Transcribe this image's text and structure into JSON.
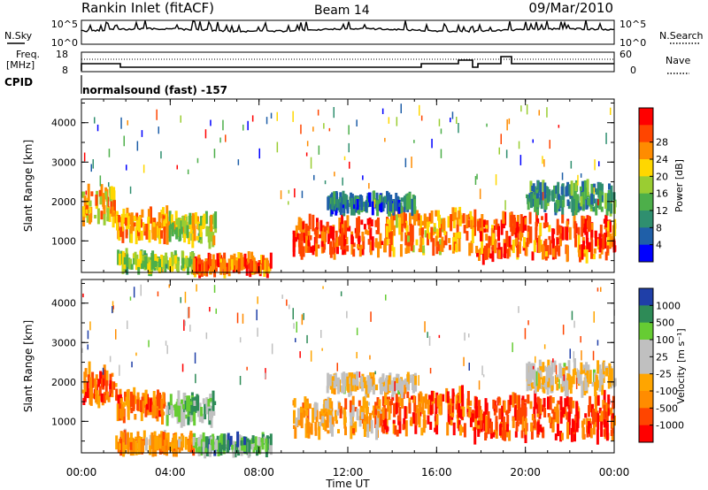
{
  "header": {
    "site": "Rankin Inlet (fitACF)",
    "beam": "Beam 14",
    "date": "09/Mar/2010"
  },
  "status": {
    "nsky_label": "N.Sky",
    "nsky_ticks": [
      "10^5",
      "10^0"
    ],
    "nsearch_label": "N.Search",
    "nsearch_ticks": [
      "10^5",
      "10^0"
    ],
    "freq_label": "Freq.",
    "freq_unit": "[MHz]",
    "freq_ticks": [
      "18",
      "8"
    ],
    "nave_label": "Nave",
    "nave_ticks": [
      "60",
      "0"
    ],
    "cpid_label": "CPID",
    "cpid_value": "normalsound (fast) -157"
  },
  "colors": {
    "power": [
      "#0000ff",
      "#1f5fa8",
      "#2f8f6f",
      "#4daf4a",
      "#9acd32",
      "#ffd700",
      "#ff8c00",
      "#ff4500",
      "#ff0000"
    ],
    "velocity": [
      "#ff0000",
      "#ff4500",
      "#ff8c00",
      "#ffa500",
      "#c0c0c0",
      "#c0c0c0",
      "#66cc33",
      "#2e8b57",
      "#1f3fa8"
    ]
  },
  "chart_data": [
    {
      "type": "heatmap",
      "name": "power",
      "ylabel": "Slant Range [km]",
      "ylim": [
        200,
        4600
      ],
      "yticks": [
        "1000",
        "2000",
        "3000",
        "4000"
      ],
      "xlim_hours": [
        0,
        24
      ],
      "colorbar": {
        "label": "Power [dB]",
        "ticks": [
          "4",
          "8",
          "12",
          "16",
          "20",
          "24",
          "28"
        ]
      },
      "echo_bands": [
        {
          "t": [
            0.0,
            1.5
          ],
          "r": [
            1500,
            2300
          ],
          "level": 0.65
        },
        {
          "t": [
            1.5,
            3.8
          ],
          "r": [
            1100,
            1700
          ],
          "level": 0.7
        },
        {
          "t": [
            3.8,
            6.0
          ],
          "r": [
            1000,
            1600
          ],
          "level": 0.55
        },
        {
          "t": [
            1.5,
            5.0
          ],
          "r": [
            300,
            600
          ],
          "level": 0.5
        },
        {
          "t": [
            5.0,
            8.5
          ],
          "r": [
            250,
            550
          ],
          "level": 0.8
        },
        {
          "t": [
            9.5,
            13.5
          ],
          "r": [
            700,
            1500
          ],
          "level": 0.85
        },
        {
          "t": [
            13.5,
            17.5
          ],
          "r": [
            700,
            1700
          ],
          "level": 0.7
        },
        {
          "t": [
            17.5,
            24.0
          ],
          "r": [
            600,
            1600
          ],
          "level": 0.8
        },
        {
          "t": [
            11.0,
            15.0
          ],
          "r": [
            1800,
            2100
          ],
          "level": 0.25
        },
        {
          "t": [
            20.0,
            24.0
          ],
          "r": [
            1800,
            2400
          ],
          "level": 0.3
        }
      ]
    },
    {
      "type": "heatmap",
      "name": "velocity",
      "ylabel": "Slant Range [km]",
      "ylim": [
        200,
        4600
      ],
      "yticks": [
        "1000",
        "2000",
        "3000",
        "4000"
      ],
      "xlim_hours": [
        0,
        24
      ],
      "colorbar": {
        "label": "Velocity [m s⁻¹]",
        "ticks": [
          "1000",
          "500",
          "100",
          "25",
          "-25",
          "-100",
          "-500",
          "-1000"
        ]
      },
      "echo_bands": [
        {
          "t": [
            0.0,
            1.5
          ],
          "r": [
            1500,
            2300
          ],
          "level": 0.2
        },
        {
          "t": [
            1.5,
            3.8
          ],
          "r": [
            1100,
            1700
          ],
          "level": 0.25
        },
        {
          "t": [
            3.8,
            6.0
          ],
          "r": [
            1000,
            1600
          ],
          "level": 0.7
        },
        {
          "t": [
            1.5,
            5.0
          ],
          "r": [
            300,
            600
          ],
          "level": 0.3
        },
        {
          "t": [
            5.0,
            8.5
          ],
          "r": [
            250,
            550
          ],
          "level": 0.75
        },
        {
          "t": [
            9.5,
            13.5
          ],
          "r": [
            700,
            1500
          ],
          "level": 0.35
        },
        {
          "t": [
            13.5,
            17.5
          ],
          "r": [
            700,
            1700
          ],
          "level": 0.2
        },
        {
          "t": [
            17.5,
            24.0
          ],
          "r": [
            600,
            1600
          ],
          "level": 0.15
        },
        {
          "t": [
            11.0,
            15.0
          ],
          "r": [
            1800,
            2100
          ],
          "level": 0.5
        },
        {
          "t": [
            20.0,
            24.0
          ],
          "r": [
            1800,
            2400
          ],
          "level": 0.5
        }
      ]
    }
  ],
  "xaxis": {
    "ticks": [
      "00:00",
      "04:00",
      "08:00",
      "12:00",
      "16:00",
      "20:00",
      "00:00"
    ],
    "label": "Time UT"
  }
}
